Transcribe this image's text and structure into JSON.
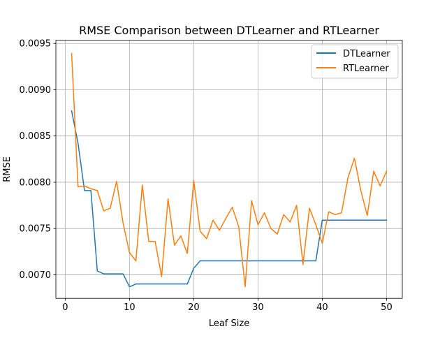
{
  "chart_data": {
    "type": "line",
    "title": "RMSE Comparison between DTLearner and RTLearner",
    "xlabel": "Leaf Size",
    "ylabel": "RMSE",
    "xlim": [
      -1.45,
      52.45
    ],
    "ylim": [
      0.006745,
      0.009535
    ],
    "xticks": [
      0,
      10,
      20,
      30,
      40,
      50
    ],
    "xtick_labels": [
      "0",
      "10",
      "20",
      "30",
      "40",
      "50"
    ],
    "yticks": [
      0.007,
      0.0075,
      0.008,
      0.0085,
      0.009,
      0.0095
    ],
    "ytick_labels": [
      "0.0070",
      "0.0075",
      "0.0080",
      "0.0085",
      "0.0090",
      "0.0095"
    ],
    "grid": true,
    "legend_position": "upper right",
    "x": [
      1,
      2,
      3,
      4,
      5,
      6,
      7,
      8,
      9,
      10,
      11,
      12,
      13,
      14,
      15,
      16,
      17,
      18,
      19,
      20,
      21,
      22,
      23,
      24,
      25,
      26,
      27,
      28,
      29,
      30,
      31,
      32,
      33,
      34,
      35,
      36,
      37,
      38,
      39,
      40,
      41,
      42,
      43,
      44,
      45,
      46,
      47,
      48,
      49,
      50
    ],
    "series": [
      {
        "name": "DTLearner",
        "color": "#1f77b4",
        "values": [
          0.00877,
          0.00842,
          0.00791,
          0.00791,
          0.00704,
          0.00701,
          0.00701,
          0.00701,
          0.00701,
          0.00687,
          0.0069,
          0.0069,
          0.0069,
          0.0069,
          0.0069,
          0.0069,
          0.0069,
          0.0069,
          0.0069,
          0.00707,
          0.00715,
          0.00715,
          0.00715,
          0.00715,
          0.00715,
          0.00715,
          0.00715,
          0.00715,
          0.00715,
          0.00715,
          0.00715,
          0.00715,
          0.00715,
          0.00715,
          0.00715,
          0.00715,
          0.00715,
          0.00715,
          0.00715,
          0.00759,
          0.00759,
          0.00759,
          0.00759,
          0.00759,
          0.00759,
          0.00759,
          0.00759,
          0.00759,
          0.00759,
          0.00759
        ]
      },
      {
        "name": "RTLearner",
        "color": "#ff7f0e",
        "values": [
          0.00939,
          0.00795,
          0.00796,
          0.00793,
          0.00791,
          0.00769,
          0.00772,
          0.00801,
          0.00756,
          0.00724,
          0.00715,
          0.00797,
          0.00736,
          0.00736,
          0.00698,
          0.00782,
          0.00732,
          0.00742,
          0.00723,
          0.00802,
          0.00747,
          0.00739,
          0.00759,
          0.00748,
          0.00761,
          0.00773,
          0.00752,
          0.00687,
          0.0078,
          0.00754,
          0.00767,
          0.0075,
          0.00744,
          0.00765,
          0.00757,
          0.00775,
          0.00711,
          0.00772,
          0.00754,
          0.00734,
          0.00768,
          0.00765,
          0.00767,
          0.00805,
          0.00826,
          0.00791,
          0.00764,
          0.00812,
          0.00796,
          0.00812
        ]
      }
    ]
  }
}
